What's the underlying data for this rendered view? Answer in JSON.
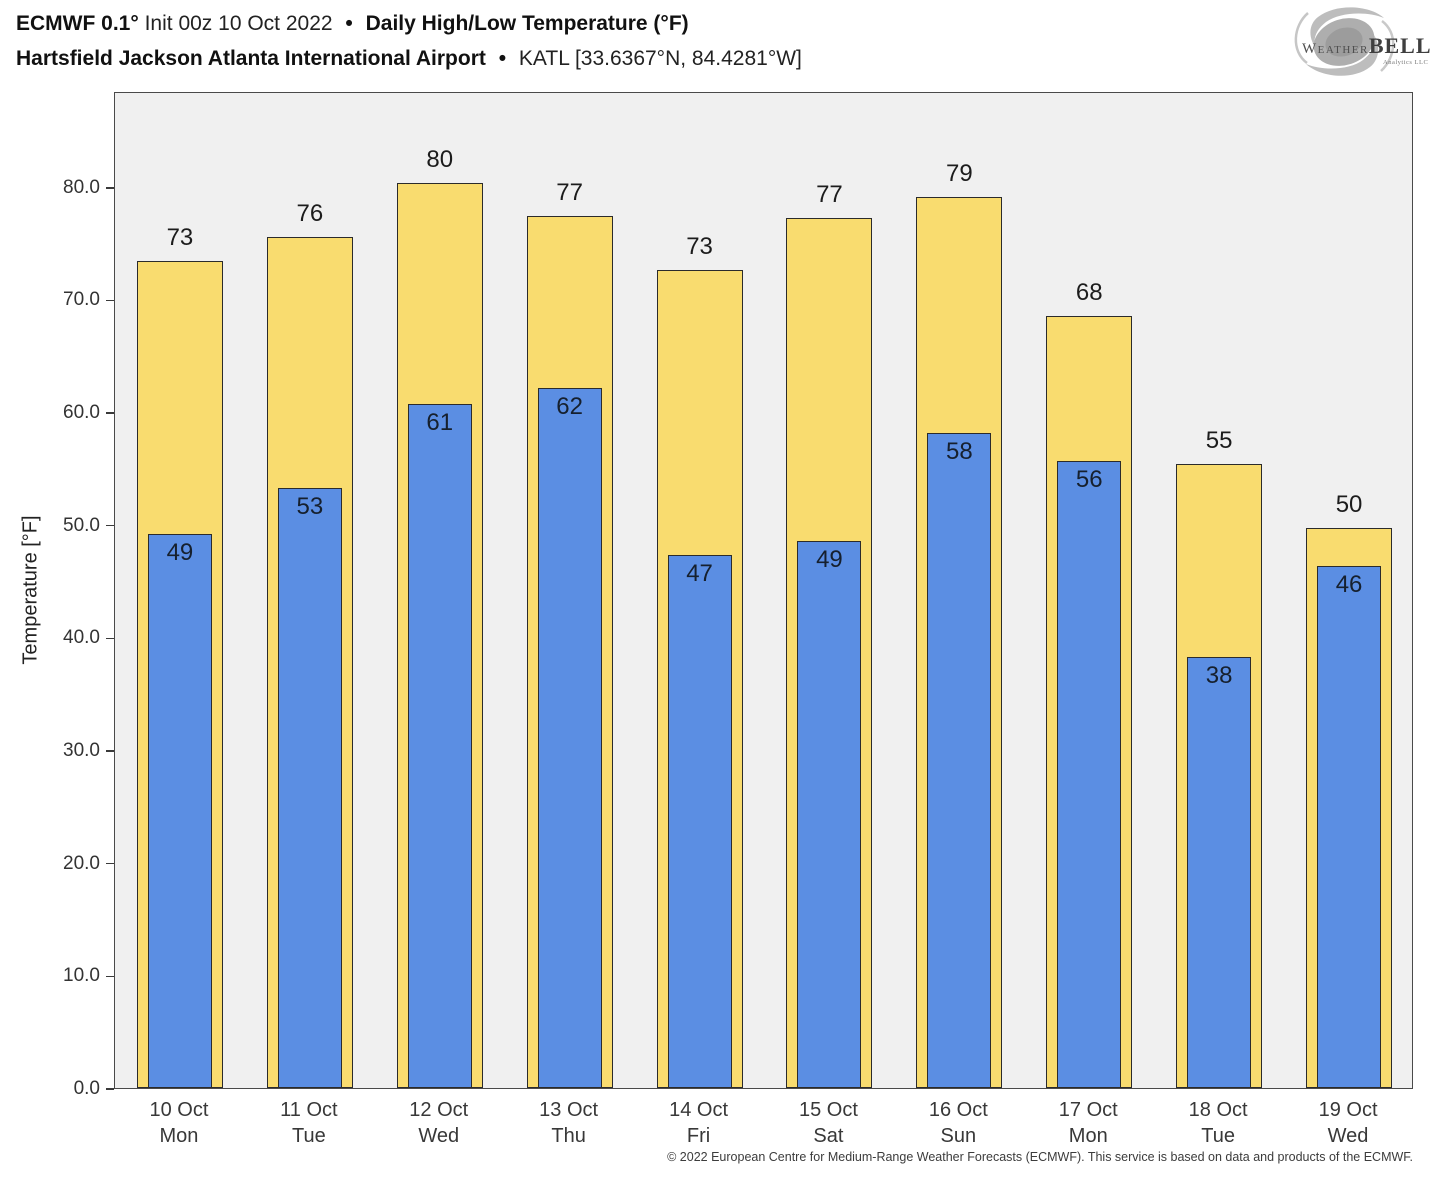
{
  "header": {
    "line1_model": "ECMWF 0.1°",
    "line1_init": "Init 00z 10 Oct 2022",
    "line1_sep": "•",
    "line1_product": "Daily High/Low Temperature (°F)",
    "line2_station": "Hartsfield Jackson Atlanta International Airport",
    "line2_sep": "•",
    "line2_id": "KATL [33.6367°N, 84.4281°W]"
  },
  "logo": {
    "brand_weather": "Weather",
    "brand_bell": "BELL",
    "subtext": "Analytics LLC"
  },
  "chart_data": {
    "type": "bar",
    "title": "ECMWF 0.1° Init 00z 10 Oct 2022 • Daily High/Low Temperature (°F)",
    "subtitle": "Hartsfield Jackson Atlanta International Airport • KATL [33.6367°N, 84.4281°W]",
    "ylabel": "Temperature [°F]",
    "xlabel": "",
    "ylim": [
      0,
      88.5
    ],
    "grid": false,
    "legend": "none",
    "plot_background": "#f0f0f0",
    "yticks": [
      0,
      10,
      20,
      30,
      40,
      50,
      60,
      70,
      80
    ],
    "ytick_labels": [
      "0.0",
      "10.0",
      "20.0",
      "30.0",
      "40.0",
      "50.0",
      "60.0",
      "70.0",
      "80.0"
    ],
    "categories": [
      {
        "date": "10 Oct",
        "weekday": "Mon"
      },
      {
        "date": "11 Oct",
        "weekday": "Tue"
      },
      {
        "date": "12 Oct",
        "weekday": "Wed"
      },
      {
        "date": "13 Oct",
        "weekday": "Thu"
      },
      {
        "date": "14 Oct",
        "weekday": "Fri"
      },
      {
        "date": "15 Oct",
        "weekday": "Sat"
      },
      {
        "date": "16 Oct",
        "weekday": "Sun"
      },
      {
        "date": "17 Oct",
        "weekday": "Mon"
      },
      {
        "date": "18 Oct",
        "weekday": "Tue"
      },
      {
        "date": "19 Oct",
        "weekday": "Wed"
      }
    ],
    "series": [
      {
        "name": "Daily High",
        "color": "#f9dc6f",
        "values": [
          73,
          76,
          80,
          77,
          73,
          77,
          79,
          68,
          55,
          50
        ],
        "bar_values": [
          73.4,
          75.5,
          80.3,
          77.4,
          72.6,
          77.2,
          79.1,
          68.5,
          55.4,
          49.7
        ]
      },
      {
        "name": "Daily Low",
        "color": "#5b8ee3",
        "values": [
          49,
          53,
          61,
          62,
          47,
          49,
          58,
          56,
          38,
          46
        ],
        "bar_values": [
          49.2,
          53.3,
          60.7,
          62.1,
          47.3,
          48.6,
          58.1,
          55.7,
          38.3,
          46.3
        ]
      }
    ]
  },
  "footer": {
    "copyright": "© 2022 European Centre for Medium-Range Weather Forecasts (ECMWF). This service is based on data and products of the ECMWF."
  }
}
